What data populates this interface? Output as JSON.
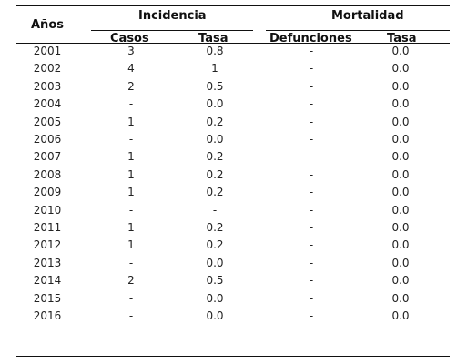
{
  "table": {
    "header": {
      "years": "Años",
      "incidencia": "Incidencia",
      "mortalidad": "Mortalidad",
      "casos": "Casos",
      "tasa_incidencia": "Tasa",
      "defunciones": "Defunciones",
      "tasa_mortalidad": "Tasa"
    },
    "rows": [
      {
        "year": "2001",
        "casos": "3",
        "tasa_inc": "0.8",
        "defunciones": "-",
        "tasa_mort": "0.0"
      },
      {
        "year": "2002",
        "casos": "4",
        "tasa_inc": "1",
        "defunciones": "-",
        "tasa_mort": "0.0"
      },
      {
        "year": "2003",
        "casos": "2",
        "tasa_inc": "0.5",
        "defunciones": "-",
        "tasa_mort": "0.0"
      },
      {
        "year": "2004",
        "casos": "-",
        "tasa_inc": "0.0",
        "defunciones": "-",
        "tasa_mort": "0.0"
      },
      {
        "year": "2005",
        "casos": "1",
        "tasa_inc": "0.2",
        "defunciones": "-",
        "tasa_mort": "0.0"
      },
      {
        "year": "2006",
        "casos": "-",
        "tasa_inc": "0.0",
        "defunciones": "-",
        "tasa_mort": "0.0"
      },
      {
        "year": "2007",
        "casos": "1",
        "tasa_inc": "0.2",
        "defunciones": "-",
        "tasa_mort": "0.0"
      },
      {
        "year": "2008",
        "casos": "1",
        "tasa_inc": "0.2",
        "defunciones": "-",
        "tasa_mort": "0.0"
      },
      {
        "year": "2009",
        "casos": "1",
        "tasa_inc": "0.2",
        "defunciones": "-",
        "tasa_mort": "0.0"
      },
      {
        "year": "2010",
        "casos": "-",
        "tasa_inc": "-",
        "defunciones": "-",
        "tasa_mort": "0.0"
      },
      {
        "year": "2011",
        "casos": "1",
        "tasa_inc": "0.2",
        "defunciones": "-",
        "tasa_mort": "0.0"
      },
      {
        "year": "2012",
        "casos": "1",
        "tasa_inc": "0.2",
        "defunciones": "-",
        "tasa_mort": "0.0"
      },
      {
        "year": "2013",
        "casos": "-",
        "tasa_inc": "0.0",
        "defunciones": "-",
        "tasa_mort": "0.0"
      },
      {
        "year": "2014",
        "casos": "2",
        "tasa_inc": "0.5",
        "defunciones": "-",
        "tasa_mort": "0.0"
      },
      {
        "year": "2015",
        "casos": "-",
        "tasa_inc": "0.0",
        "defunciones": "-",
        "tasa_mort": "0.0"
      },
      {
        "year": "2016",
        "casos": "-",
        "tasa_inc": "0.0",
        "defunciones": "-",
        "tasa_mort": "0.0"
      }
    ]
  }
}
